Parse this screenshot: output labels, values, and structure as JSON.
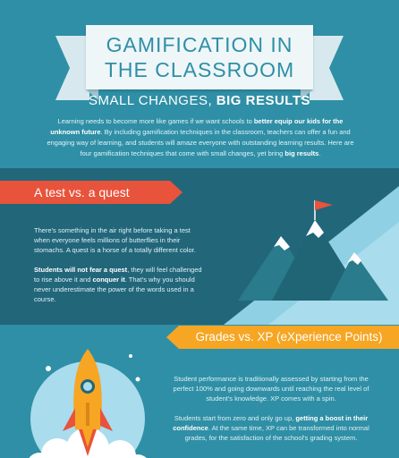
{
  "header": {
    "title_line1": "GAMIFICATION IN",
    "title_line2": "THE CLASSROOM",
    "subtitle_normal": "SMALL CHANGES, ",
    "subtitle_bold": "BIG RESULTS"
  },
  "intro": {
    "t1": "Learning needs to become more like games if we want schools to ",
    "b1": "better equip our kids for the unknown future",
    "t2": ". By including gamification techniques in the classroom, teachers can offer a fun and engaging way of learning, and students will amaze everyone with outstanding learning results. Here are four gamification techniques that come with small changes, yet bring ",
    "b2": "big results",
    "t3": "."
  },
  "section1": {
    "heading": "A test vs. a quest",
    "para1": "There's something in the air right before taking a test when everyone feels millions of butterflies in their stomachs. A quest is a horse of a totally different color.",
    "para2_b1": "Students will not fear a quest",
    "para2_t1": ", they will feel challenged to rise above it and ",
    "para2_b2": "conquer it",
    "para2_t2": ". That's why you should never underestimate the power of the words used in a course."
  },
  "section2": {
    "heading": "Grades vs. XP (eXperience Points)",
    "para1": "Student performance is traditionally assessed by starting from the perfect 100% and going downwards until reaching the real level of student's knowledge. XP comes with a spin.",
    "para2_t1": "Students start from zero and only go up, ",
    "para2_b1": "getting a boost in their confidence",
    "para2_t2": ". At the same time, XP can be transformed into normal grades, for the satisfaction of the school's grading system."
  },
  "colors": {
    "background": "#2f8fa6",
    "dark_band": "#22667a",
    "banner": "#eef6f8",
    "ribbon_red": "#e8533c",
    "ribbon_orange": "#f6a623"
  }
}
